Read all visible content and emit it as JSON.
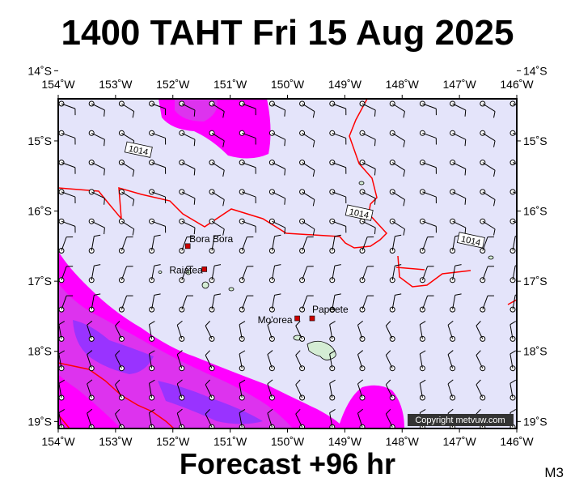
{
  "title": "1400 TAHT Fri 15 Aug 2025",
  "footer": "Forecast +96 hr",
  "model_tag": "M3",
  "copyright": "Copyright metvuw.com",
  "colors": {
    "background": "#e4e4fa",
    "rain_light": "#ff00ff",
    "rain_medium": "#dd33ee",
    "rain_heavy": "#9933ff",
    "isobar": "#ff0000",
    "town": "#cc0000",
    "land": "#d4ecd4"
  },
  "map": {
    "lon_range": [
      -154,
      -146
    ],
    "lat_range": [
      -19.1,
      -14.4
    ],
    "lon_ticks": [
      "154˚W",
      "153˚W",
      "152˚W",
      "151˚W",
      "150˚W",
      "149˚W",
      "148˚W",
      "147˚W",
      "146˚W"
    ],
    "lat_ticks": [
      "14˚S",
      "15˚S",
      "16˚S",
      "17˚S",
      "18˚S",
      "19˚S"
    ],
    "places": [
      {
        "name": "Bora Bora",
        "lon": -151.74,
        "lat": -16.5
      },
      {
        "name": "Raiatea",
        "lon": -151.45,
        "lat": -16.83
      },
      {
        "name": "Mo'orea",
        "lon": -149.83,
        "lat": -17.53
      },
      {
        "name": "Papeete",
        "lon": -149.57,
        "lat": -17.53
      }
    ],
    "isobars": [
      {
        "label": "1014",
        "label_lon": -152.6,
        "label_lat": -15.13
      },
      {
        "label": "1014",
        "label_lon": -148.75,
        "label_lat": -16.03
      },
      {
        "label": "1014",
        "label_lon": -146.8,
        "label_lat": -16.42
      }
    ]
  }
}
